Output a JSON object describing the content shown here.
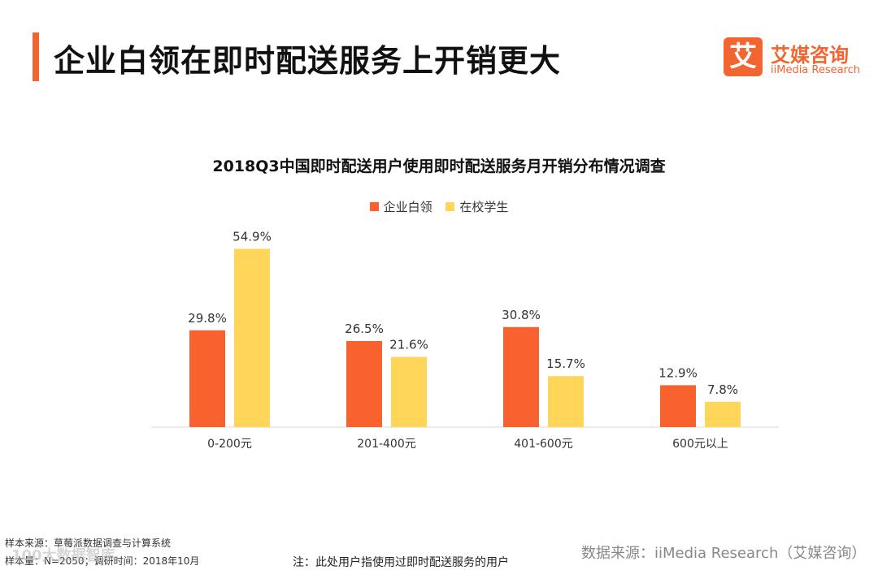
{
  "header": {
    "title": "企业白领在即时配送服务上开销更大",
    "accent_color": "#F26531"
  },
  "logo": {
    "mark": "艾",
    "name_cn": "艾媒咨询",
    "name_en": "iiMedia Research",
    "color": "#F26531"
  },
  "chart_data": {
    "type": "bar",
    "title": "2018Q3中国即时配送用户使用即时配送服务月开销分布情况调查",
    "categories": [
      "0-200元",
      "201-400元",
      "401-600元",
      "600元以上"
    ],
    "series": [
      {
        "name": "企业白领",
        "color": "#F9622E",
        "values": [
          29.8,
          26.5,
          30.8,
          12.9
        ],
        "labels": [
          "29.8%",
          "26.5%",
          "30.8%",
          "12.9%"
        ]
      },
      {
        "name": "在校学生",
        "color": "#FFD65A",
        "values": [
          54.9,
          21.6,
          15.7,
          7.8
        ],
        "labels": [
          "54.9%",
          "21.6%",
          "15.7%",
          "7.8%"
        ]
      }
    ],
    "ylim": [
      0,
      60
    ],
    "xlabel": "",
    "ylabel": "",
    "legend_position": "top-center",
    "grid": false
  },
  "footer": {
    "sample_source": "样本来源：草莓派数据调查与计算系统",
    "sample_size": "样本量：N=2050；调研时间：2018年10月",
    "data_source": "数据来源：iiMedia Research（艾媒咨询）",
    "note": "注：此处用户指使用过即时配送服务的用户",
    "watermark": "100大数据智库"
  }
}
